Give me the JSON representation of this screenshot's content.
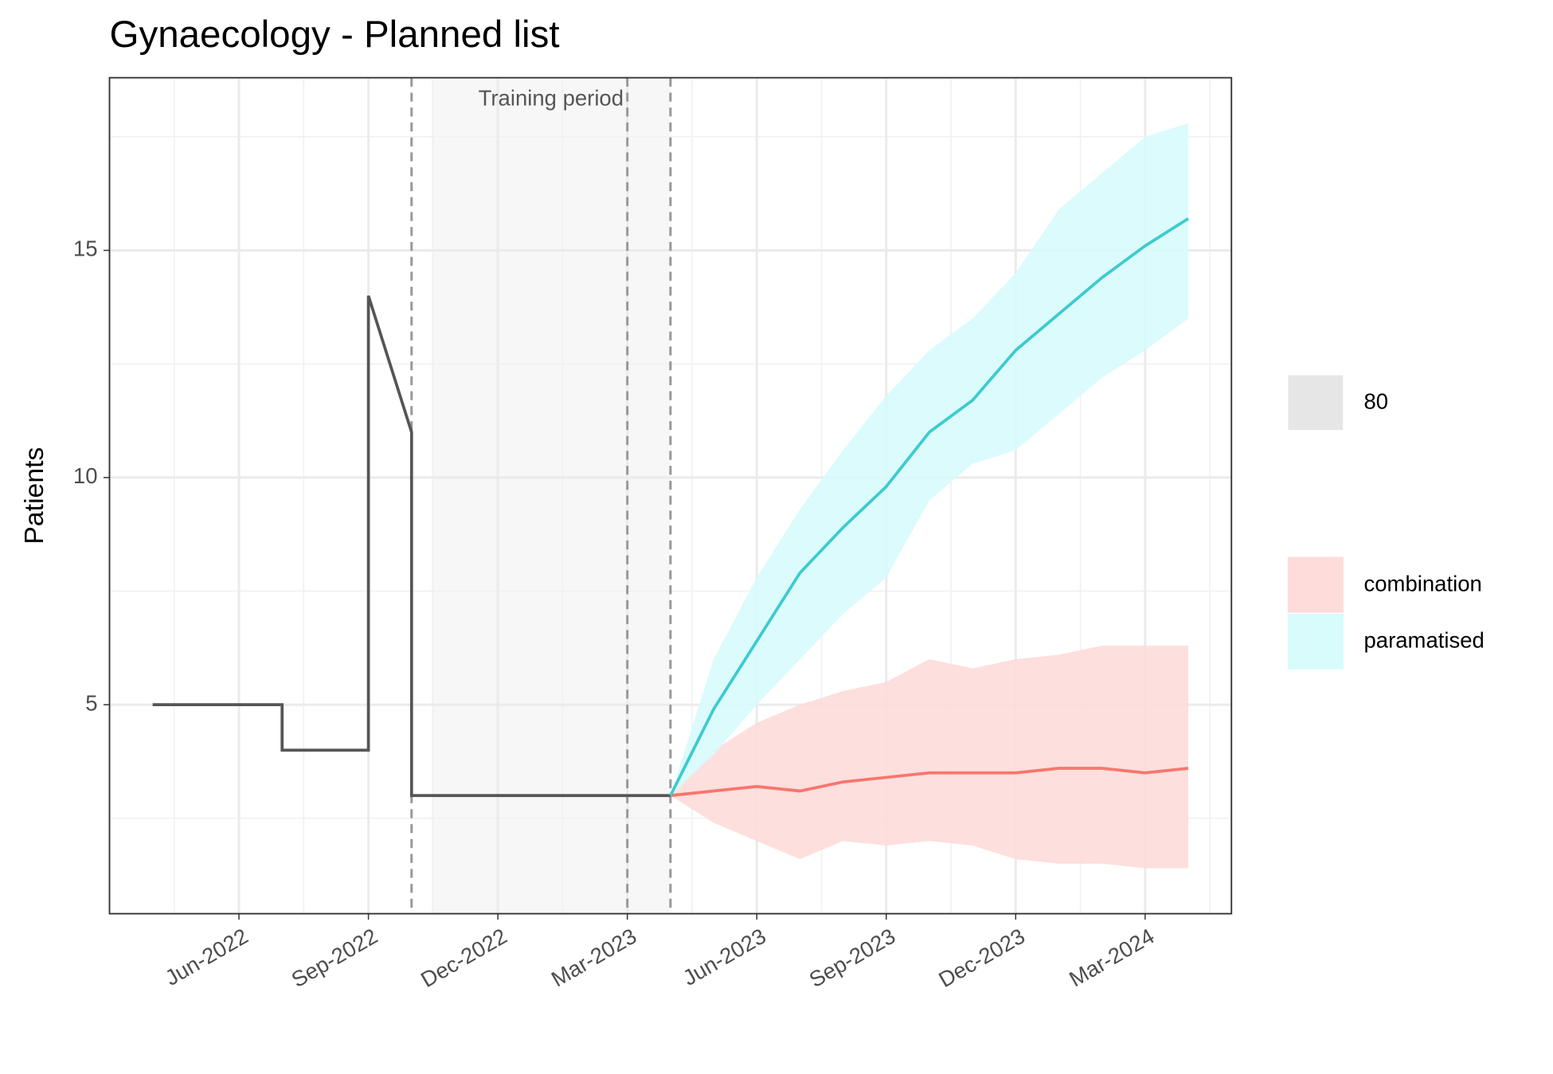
{
  "chart_data": {
    "type": "forecast",
    "title": "Gynaecology - Planned list",
    "y_label": "Patients",
    "xlim": [
      "2022-03",
      "2024-05"
    ],
    "xticks": [
      {
        "value": "2022-06",
        "label": "Jun-2022"
      },
      {
        "value": "2022-09",
        "label": "Sep-2022"
      },
      {
        "value": "2022-12",
        "label": "Dec-2022"
      },
      {
        "value": "2023-03",
        "label": "Mar-2023"
      },
      {
        "value": "2023-06",
        "label": "Jun-2023"
      },
      {
        "value": "2023-09",
        "label": "Sep-2023"
      },
      {
        "value": "2023-12",
        "label": "Dec-2023"
      },
      {
        "value": "2024-03",
        "label": "Mar-2024"
      }
    ],
    "ylim": [
      0.4,
      18.8
    ],
    "yticks": [
      5,
      10,
      15
    ],
    "grid": true,
    "training_period": {
      "label": "Training period",
      "range": [
        "2022-10",
        "2023-04"
      ],
      "lines": [
        "2022-10",
        "2023-03",
        "2023-04"
      ]
    },
    "history": {
      "color": "#555555",
      "x": [
        "2022-04",
        "2022-07",
        "2022-07",
        "2022-09",
        "2022-09",
        "2022-10",
        "2022-10",
        "2023-04"
      ],
      "values": [
        5,
        5,
        4,
        4,
        14,
        11,
        3,
        3
      ]
    },
    "interval_level": 80,
    "x": [
      "2023-04",
      "2023-05",
      "2023-06",
      "2023-07",
      "2023-08",
      "2023-09",
      "2023-10",
      "2023-11",
      "2023-12",
      "2024-01",
      "2024-02",
      "2024-03",
      "2024-04"
    ],
    "series": [
      {
        "name": "combination",
        "color": "#f8766d",
        "fill": "#fddcda",
        "values": [
          3.0,
          3.1,
          3.2,
          3.1,
          3.3,
          3.4,
          3.5,
          3.5,
          3.5,
          3.6,
          3.6,
          3.5,
          3.6
        ],
        "lower": [
          3.0,
          2.4,
          2.0,
          1.6,
          2.0,
          1.9,
          2.0,
          1.9,
          1.6,
          1.5,
          1.5,
          1.4,
          1.4
        ],
        "upper": [
          3.0,
          4.0,
          4.6,
          5.0,
          5.3,
          5.5,
          6.0,
          5.8,
          6.0,
          6.1,
          6.3,
          6.3,
          6.3
        ]
      },
      {
        "name": "paramatised",
        "color": "#3ccbcf",
        "fill": "#d8fbfc",
        "values": [
          3.0,
          4.9,
          6.4,
          7.9,
          8.9,
          9.8,
          11.0,
          11.7,
          12.8,
          13.6,
          14.4,
          15.1,
          15.7
        ],
        "lower": [
          3.0,
          3.9,
          5.0,
          6.0,
          7.0,
          7.8,
          9.5,
          10.3,
          10.6,
          11.4,
          12.2,
          12.8,
          13.5
        ],
        "upper": [
          3.0,
          6.0,
          7.8,
          9.3,
          10.6,
          11.8,
          12.8,
          13.5,
          14.5,
          15.9,
          16.7,
          17.5,
          17.8
        ]
      }
    ]
  }
}
